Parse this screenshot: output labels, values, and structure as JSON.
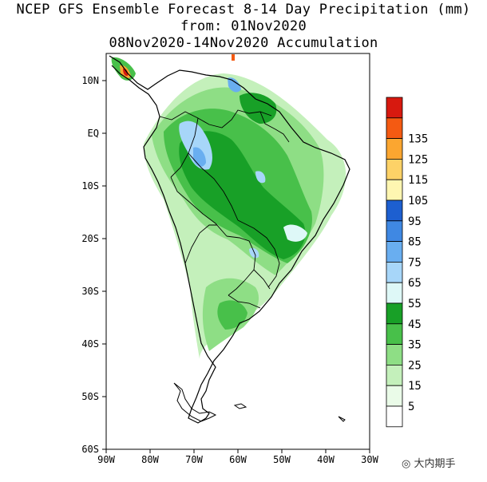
{
  "title": {
    "line1": "NCEP GFS Ensemble Forecast 8-14 Day Precipitation (mm)",
    "line2": "from: 01Nov2020",
    "line3": "08Nov2020-14Nov2020 Accumulation"
  },
  "axes": {
    "lat_labels": [
      "10N",
      "EQ",
      "10S",
      "20S",
      "30S",
      "40S",
      "50S",
      "60S"
    ],
    "lon_labels": [
      "90W",
      "80W",
      "70W",
      "60W",
      "50W",
      "40W",
      "30W"
    ]
  },
  "legend": {
    "levels": [
      {
        "label": "",
        "color": "#d7190f"
      },
      {
        "label": "135",
        "color": "#f45a12"
      },
      {
        "label": "125",
        "color": "#fba630"
      },
      {
        "label": "115",
        "color": "#fdd267"
      },
      {
        "label": "105",
        "color": "#fef6b1"
      },
      {
        "label": "95",
        "color": "#1d5fd0"
      },
      {
        "label": "85",
        "color": "#3f88e3"
      },
      {
        "label": "75",
        "color": "#69aef0"
      },
      {
        "label": "65",
        "color": "#a7d6f9"
      },
      {
        "label": "55",
        "color": "#def8f7"
      },
      {
        "label": "45",
        "color": "#18a027"
      },
      {
        "label": "35",
        "color": "#48c04a"
      },
      {
        "label": "25",
        "color": "#8ede85"
      },
      {
        "label": "15",
        "color": "#c4f0bb"
      },
      {
        "label": "5",
        "color": "#eafbe8"
      },
      {
        "label": "",
        "color": "#ffffff"
      }
    ]
  },
  "watermark": {
    "text": "大内期手"
  }
}
